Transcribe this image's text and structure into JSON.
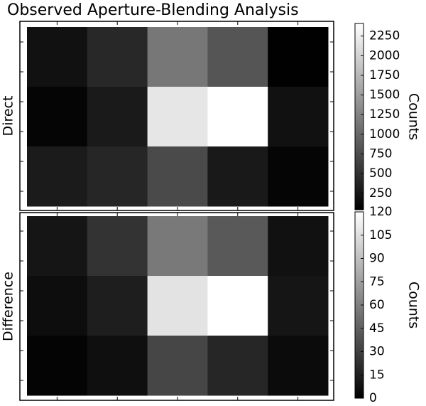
{
  "chart_data": [
    {
      "type": "heatmap",
      "title": "Observed Aperture-Blending Analysis",
      "ylabel": "Direct",
      "colorbar_label": "Counts",
      "colormap": "gray",
      "values": [
        [
          198,
          412,
          1146,
          830,
          45
        ],
        [
          86,
          282,
          2178,
          2410,
          198
        ],
        [
          290,
          393,
          728,
          272,
          86
        ]
      ],
      "zlim": [
        40,
        2410
      ],
      "zticks": [
        250,
        500,
        750,
        1000,
        1250,
        1500,
        1750,
        2000,
        2250
      ]
    },
    {
      "type": "heatmap",
      "ylabel": "Difference",
      "colorbar_label": "Counts",
      "colormap": "gray",
      "values": [
        [
          10,
          24,
          57,
          42,
          8
        ],
        [
          6,
          14,
          107,
          120,
          10
        ],
        [
          2,
          7,
          33,
          18,
          5
        ]
      ],
      "zlim": [
        0,
        120
      ],
      "zticks": [
        0,
        15,
        30,
        45,
        60,
        75,
        90,
        105,
        120
      ]
    }
  ]
}
